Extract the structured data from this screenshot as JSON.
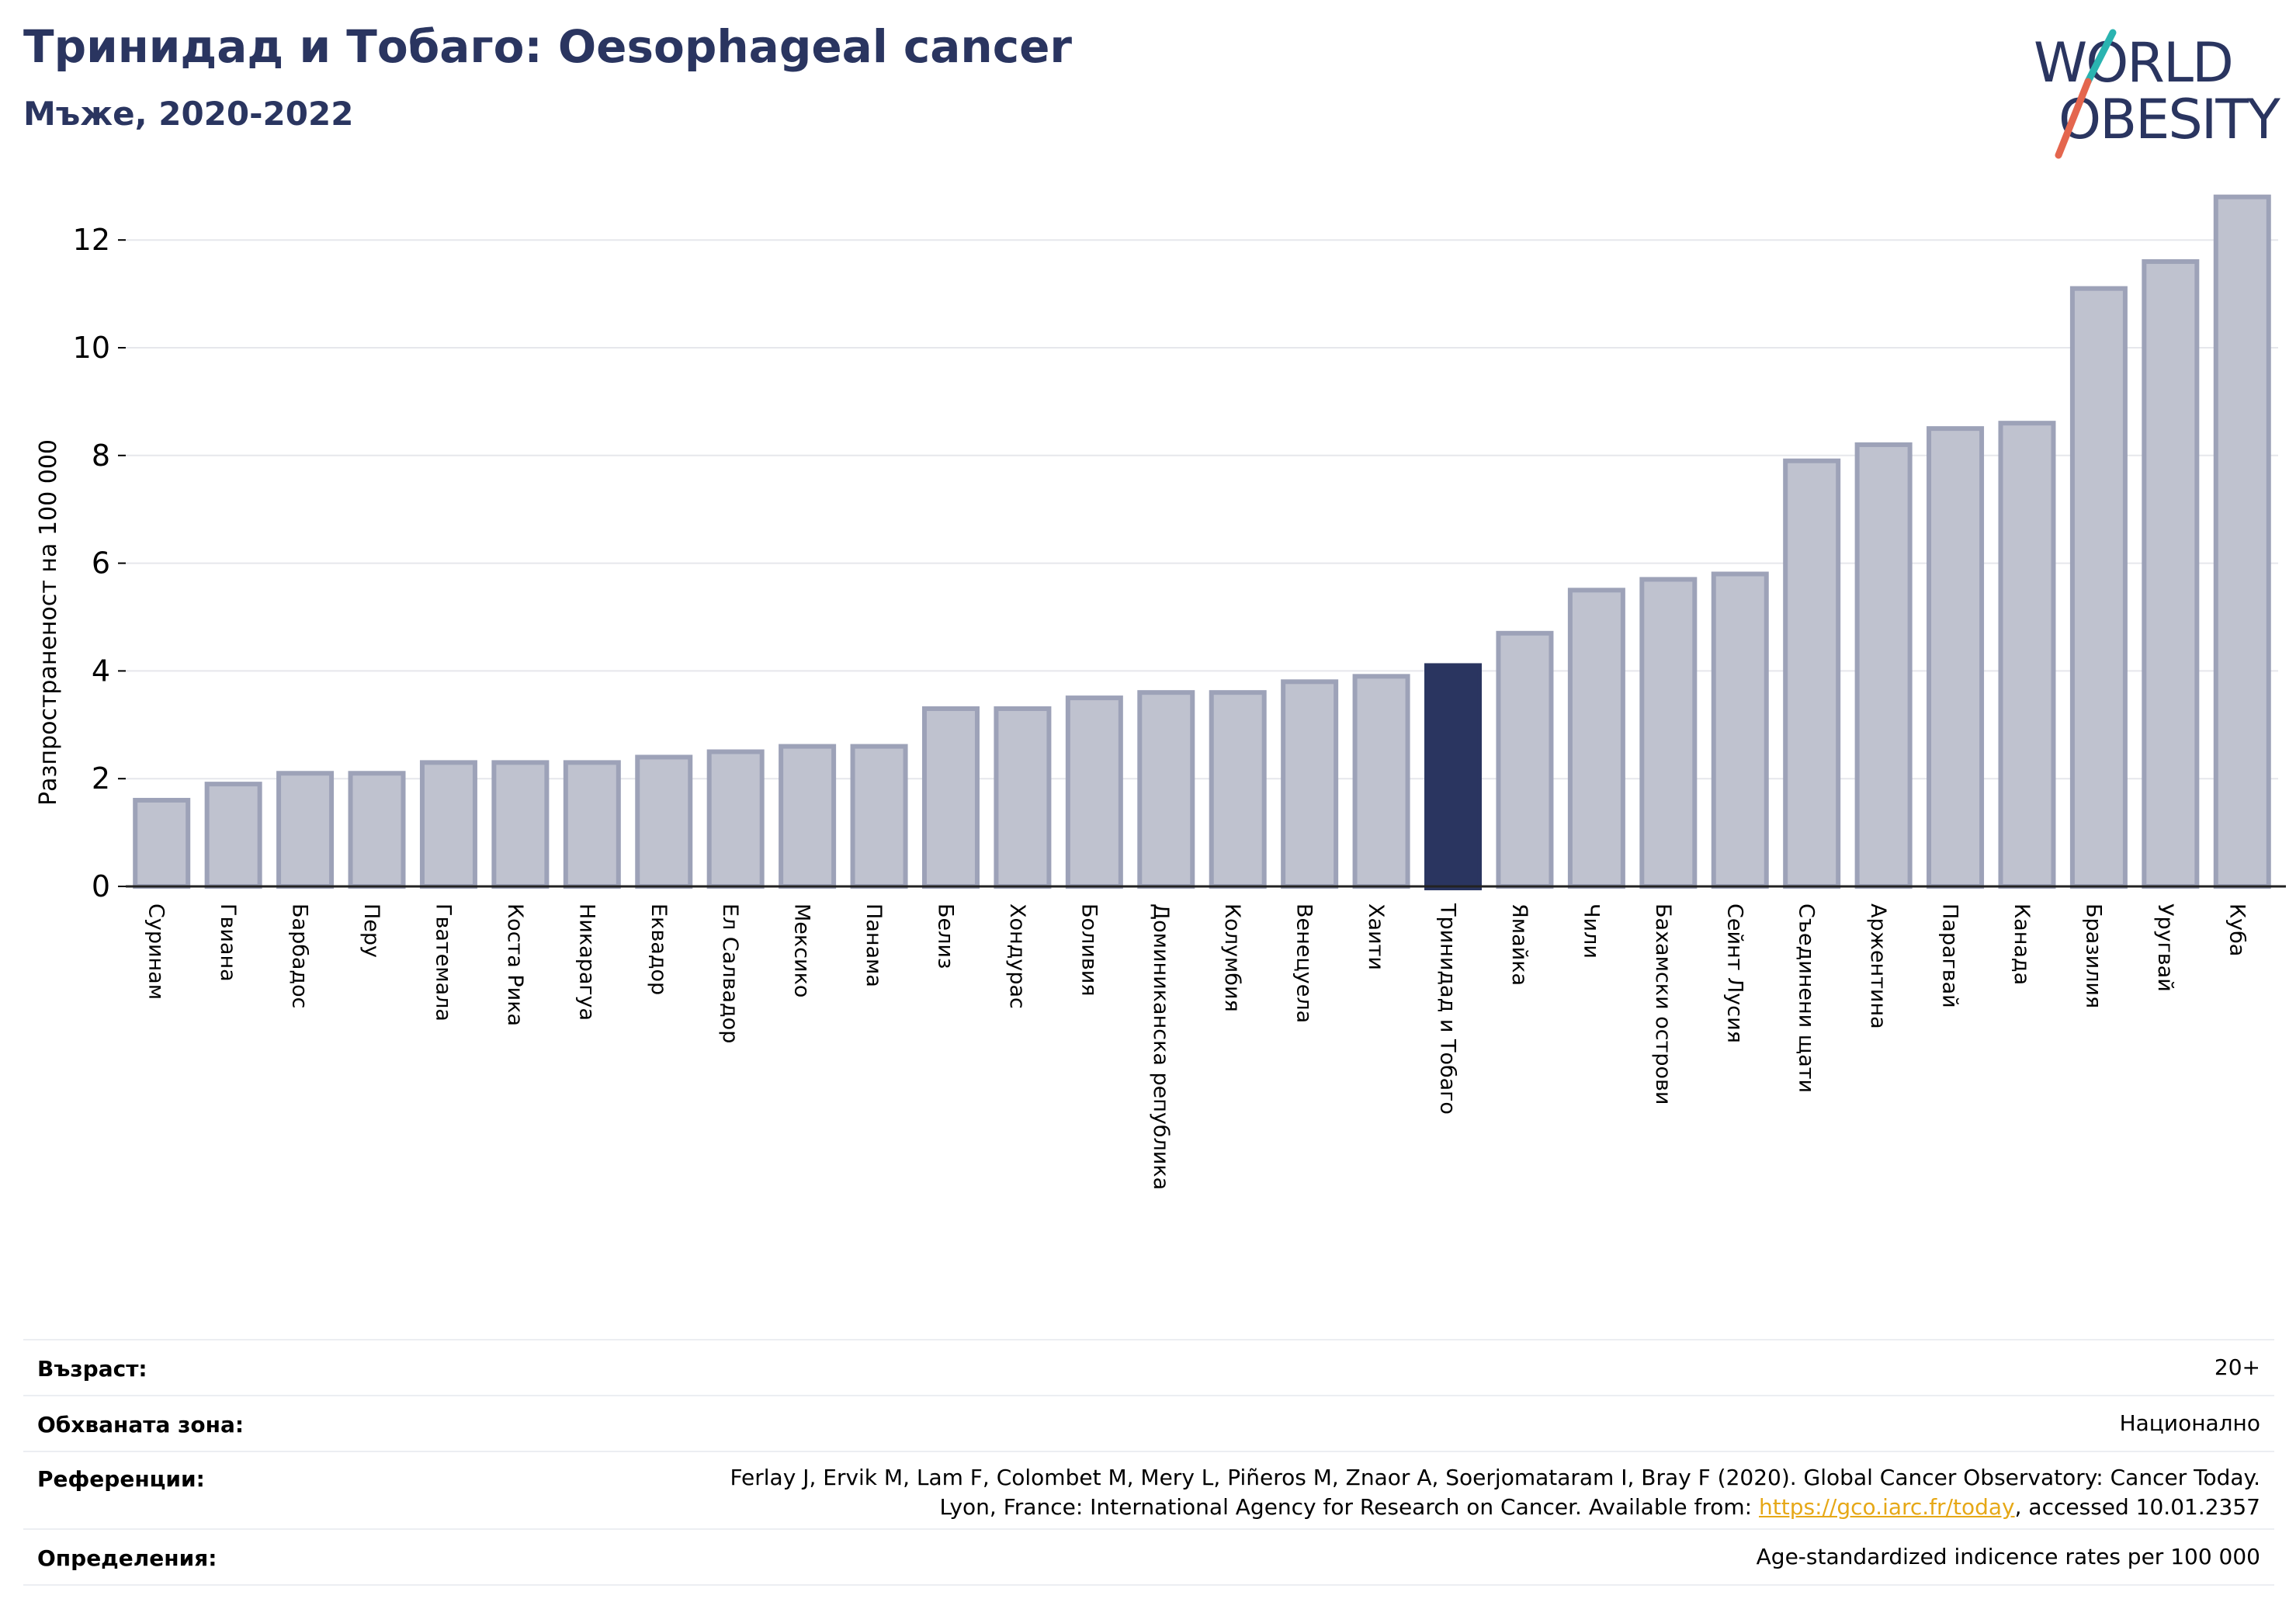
{
  "header": {
    "title": "Тринидад и Тобаго: Oesophageal cancer",
    "subtitle": "Мъже, 2020-2022"
  },
  "logo": {
    "line1": "WORLD",
    "line2": "OBESITY",
    "colors": {
      "text": "#2a3560",
      "slash_top": "#2ab3b0",
      "slash_bottom": "#e4664e"
    }
  },
  "chart_data": {
    "type": "bar",
    "title": "Тринидад и Тобаго: Oesophageal cancer",
    "subtitle": "Мъже, 2020-2022",
    "ylabel": "Разпространеност  на 100 000",
    "xlabel": "",
    "ylim": [
      0,
      13.2
    ],
    "yticks": [
      0,
      2,
      4,
      6,
      8,
      10,
      12
    ],
    "grid": true,
    "highlight": "Тринидад и Тобаго",
    "colors": {
      "bar": "#bfc2cf",
      "bar_edge": "#9da2b8",
      "highlight": "#2a3560"
    },
    "categories": [
      "Суринам",
      "Гвиана",
      "Барбадос",
      "Перу",
      "Гватемала",
      "Коста Рика",
      "Никарагуа",
      "Еквадор",
      "Ел Салвадор",
      "Мексико",
      "Панама",
      "Белиз",
      "Хондурас",
      "Боливия",
      "Доминиканска република",
      "Колумбия",
      "Венецуела",
      "Хаити",
      "Тринидад и Тобаго",
      "Ямайка",
      "Чили",
      "Бахамски острови",
      "Сейнт Лусия",
      "Съединени щати",
      "Аржентина",
      "Парагвай",
      "Канада",
      "Бразилия",
      "Уругвай",
      "Куба"
    ],
    "values": [
      1.6,
      1.9,
      2.1,
      2.1,
      2.3,
      2.3,
      2.3,
      2.4,
      2.5,
      2.6,
      2.6,
      3.3,
      3.3,
      3.5,
      3.6,
      3.6,
      3.8,
      3.9,
      4.1,
      4.7,
      5.5,
      5.7,
      5.8,
      7.9,
      8.2,
      8.5,
      8.6,
      11.1,
      11.6,
      12.8
    ]
  },
  "info": {
    "age_label": "Възраст:",
    "age_value": "20+",
    "area_label": "Обхваната зона:",
    "area_value": "Национално",
    "refs_label": "Референции:",
    "refs_line1": "Ferlay J, Ervik M, Lam F, Colombet M, Mery L, Piñeros M, Znaor A, Soerjomataram I, Bray F (2020). Global Cancer Observatory: Cancer Today.",
    "refs_line2_pre": "Lyon, France: International Agency for Research on Cancer. Available from: ",
    "refs_link": "https://gco.iarc.fr/today",
    "refs_line2_post": ", accessed 10.01.2357",
    "defs_label": "Определения:",
    "defs_value": "Age-standardized indicence rates per 100 000"
  }
}
